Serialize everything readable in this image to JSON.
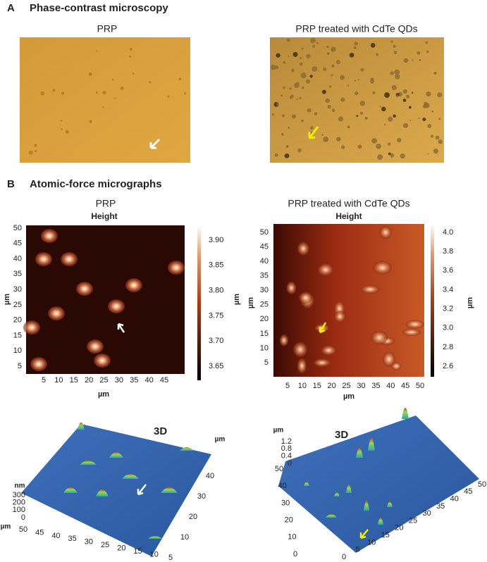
{
  "panel_a": {
    "label": "A",
    "title": "Phase-contrast microscopy",
    "images": [
      {
        "caption": "PRP"
      },
      {
        "caption": "PRP treated with CdTe QDs"
      }
    ]
  },
  "panel_b": {
    "label": "B",
    "title": "Atomic-force micrographs",
    "maps": [
      {
        "caption": "PRP",
        "subtitle": "Height",
        "x_label": "µm",
        "y_label": "µm",
        "colorbar_label": "µm",
        "xticks": [
          5,
          10,
          15,
          20,
          25,
          30,
          35,
          40,
          45
        ],
        "yticks": [
          50,
          45,
          40,
          35,
          30,
          25,
          20,
          15,
          10,
          5
        ],
        "colorbar_ticks": [
          "3.90",
          "3.85",
          "3.80",
          "3.75",
          "3.70",
          "3.65"
        ]
      },
      {
        "caption": "PRP treated with CdTe QDs",
        "subtitle": "Height",
        "x_label": "µm",
        "y_label": "µm",
        "colorbar_label": "µm",
        "xticks": [
          5,
          10,
          15,
          20,
          25,
          30,
          35,
          40,
          45,
          50
        ],
        "yticks": [
          50,
          45,
          40,
          35,
          30,
          25,
          20,
          15,
          10,
          5
        ],
        "colorbar_ticks": [
          "4.0",
          "3.8",
          "3.6",
          "3.4",
          "3.2",
          "3.0",
          "2.8",
          "2.6"
        ]
      }
    ],
    "views_3d": [
      {
        "title": "3D",
        "z_label": "nm",
        "z_ticks": [
          300,
          200,
          100,
          0
        ],
        "x_label": "µm",
        "x_ticks": [
          50,
          45,
          40,
          35,
          30,
          25,
          20,
          15,
          10,
          5
        ],
        "y_label": "µm",
        "y_ticks": [
          40,
          30,
          20,
          10
        ]
      },
      {
        "title": "3D",
        "z_label": "µm",
        "z_ticks": [
          "1.2",
          "0.8",
          "0.4",
          0
        ],
        "y_ticks": [
          50,
          40,
          30,
          20,
          10,
          0
        ],
        "x_ticks": [
          0,
          5,
          10,
          15,
          20,
          25,
          30,
          35,
          40,
          45,
          50
        ]
      }
    ]
  }
}
